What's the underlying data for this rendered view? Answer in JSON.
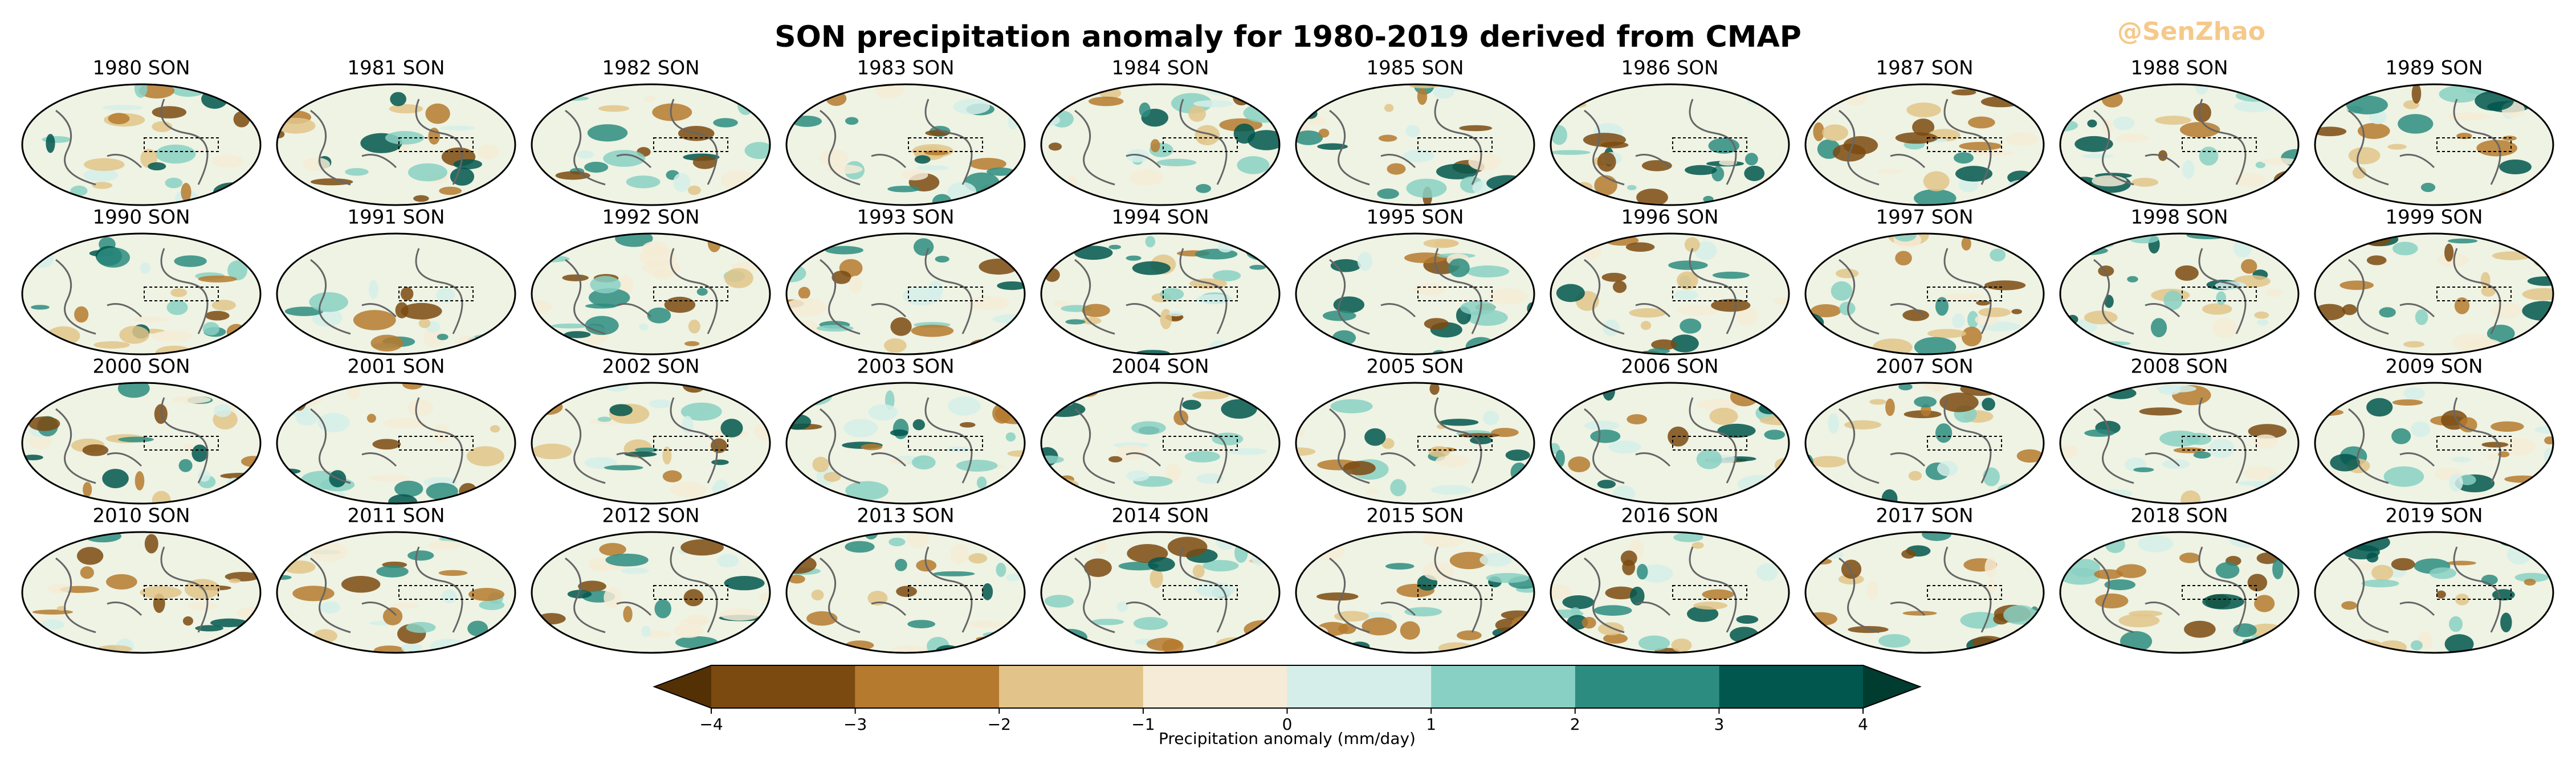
{
  "chart_data": {
    "type": "map-grid",
    "title": "SON precipitation anomaly for 1980-2019 derived from CMAP",
    "watermark": "@SenZhao",
    "panels": [
      "1980 SON",
      "1981 SON",
      "1982 SON",
      "1983 SON",
      "1984 SON",
      "1985 SON",
      "1986 SON",
      "1987 SON",
      "1988 SON",
      "1989 SON",
      "1990 SON",
      "1991 SON",
      "1992 SON",
      "1993 SON",
      "1994 SON",
      "1995 SON",
      "1996 SON",
      "1997 SON",
      "1998 SON",
      "1999 SON",
      "2000 SON",
      "2001 SON",
      "2002 SON",
      "2003 SON",
      "2004 SON",
      "2005 SON",
      "2006 SON",
      "2007 SON",
      "2008 SON",
      "2009 SON",
      "2010 SON",
      "2011 SON",
      "2012 SON",
      "2013 SON",
      "2014 SON",
      "2015 SON",
      "2016 SON",
      "2017 SON",
      "2018 SON",
      "2019 SON"
    ],
    "colorbar": {
      "label": "Precipitation anomaly (mm/day)",
      "xlim": [
        -4,
        4
      ],
      "xticks": [
        {
          "value": -4,
          "label": "−4"
        },
        {
          "value": -3,
          "label": "−3"
        },
        {
          "value": -2,
          "label": "−2"
        },
        {
          "value": -1,
          "label": "−1"
        },
        0,
        1,
        2,
        3,
        4
      ],
      "colors": [
        "#7b4a10",
        "#b57a2e",
        "#e2c48a",
        "#f5ebd6",
        "#d5eeea",
        "#88d0c3",
        "#2d8c80",
        "#01564d"
      ],
      "under_color": "#543005",
      "over_color": "#003c30"
    }
  }
}
